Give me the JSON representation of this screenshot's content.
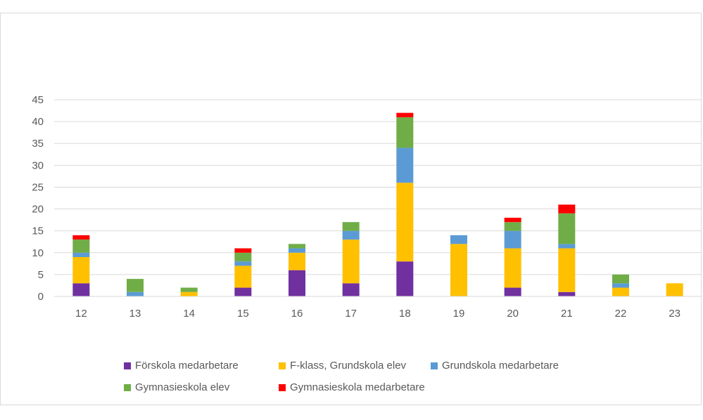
{
  "chart_data": {
    "type": "bar",
    "stacked": true,
    "categories": [
      "12",
      "13",
      "14",
      "15",
      "16",
      "17",
      "18",
      "19",
      "20",
      "21",
      "22",
      "23"
    ],
    "series": [
      {
        "name": "Förskola medarbetare",
        "color": "#7030a0",
        "values": [
          3,
          0,
          0,
          2,
          6,
          3,
          8,
          0,
          2,
          1,
          0,
          0
        ]
      },
      {
        "name": "F-klass, Grundskola elev",
        "color": "#ffc000",
        "values": [
          6,
          0,
          1,
          5,
          4,
          10,
          18,
          12,
          9,
          10,
          2,
          3
        ]
      },
      {
        "name": "Grundskola medarbetare",
        "color": "#5b9bd5",
        "values": [
          1,
          1,
          0,
          1,
          1,
          2,
          8,
          2,
          4,
          1,
          1,
          0
        ]
      },
      {
        "name": "Gymnasieskola elev",
        "color": "#70ad47",
        "values": [
          3,
          3,
          1,
          2,
          1,
          2,
          7,
          0,
          2,
          7,
          2,
          0
        ]
      },
      {
        "name": "Gymnasieskola medarbetare",
        "color": "#ff0000",
        "values": [
          1,
          0,
          0,
          1,
          0,
          0,
          1,
          0,
          1,
          2,
          0,
          0
        ]
      }
    ],
    "ylim": [
      0,
      45
    ],
    "yticks": [
      0,
      5,
      10,
      15,
      20,
      25,
      30,
      35,
      40,
      45
    ],
    "grid": true,
    "legend_position": "bottom"
  }
}
